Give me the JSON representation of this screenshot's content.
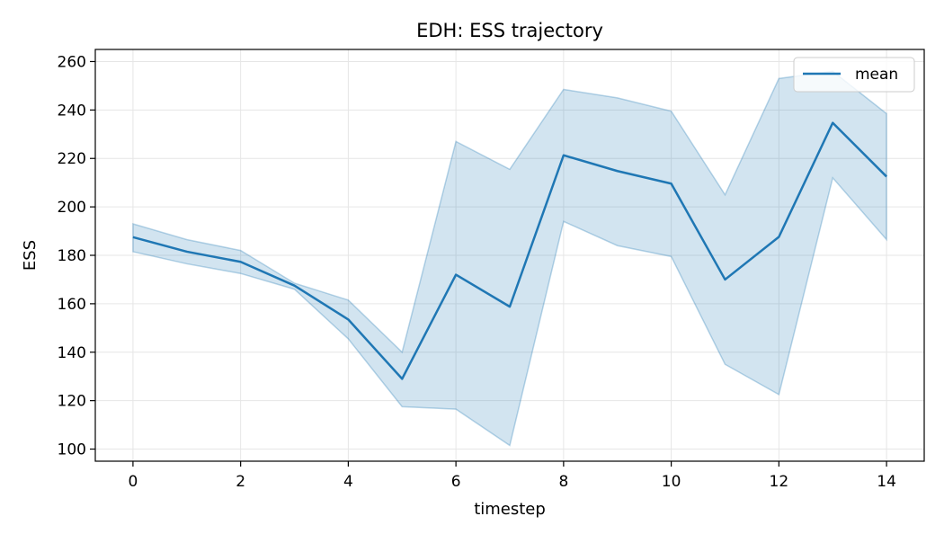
{
  "chart_data": {
    "type": "line",
    "title": "EDH: ESS trajectory",
    "xlabel": "timestep",
    "ylabel": "ESS",
    "xlim": [
      -0.7,
      14.7
    ],
    "ylim": [
      95,
      265
    ],
    "xticks": [
      0,
      2,
      4,
      6,
      8,
      10,
      12,
      14
    ],
    "yticks": [
      100,
      120,
      140,
      160,
      180,
      200,
      220,
      240,
      260
    ],
    "grid": true,
    "legend_position": "top-right",
    "x": [
      0,
      1,
      2,
      3,
      4,
      5,
      6,
      7,
      8,
      9,
      10,
      11,
      12,
      13,
      14
    ],
    "series": [
      {
        "name": "mean",
        "values": [
          187.5,
          181.5,
          177.3,
          167.5,
          153.5,
          129,
          172,
          158.8,
          221.3,
          214.8,
          209.6,
          170,
          187.6,
          234.7,
          212.5
        ],
        "band_upper": [
          193,
          186.5,
          182,
          168.5,
          161.5,
          140,
          227,
          215.5,
          248.5,
          245,
          239.5,
          205,
          253,
          256,
          238.5
        ],
        "band_lower": [
          181.5,
          176.5,
          172.5,
          166,
          145.5,
          117.5,
          116.5,
          101.5,
          194,
          184,
          179.5,
          135,
          122.5,
          212,
          186.5
        ]
      }
    ],
    "colors": {
      "line": "#1f77b4",
      "band": "#1f77b4",
      "grid": "#e6e6e6",
      "axis": "#000000"
    }
  }
}
